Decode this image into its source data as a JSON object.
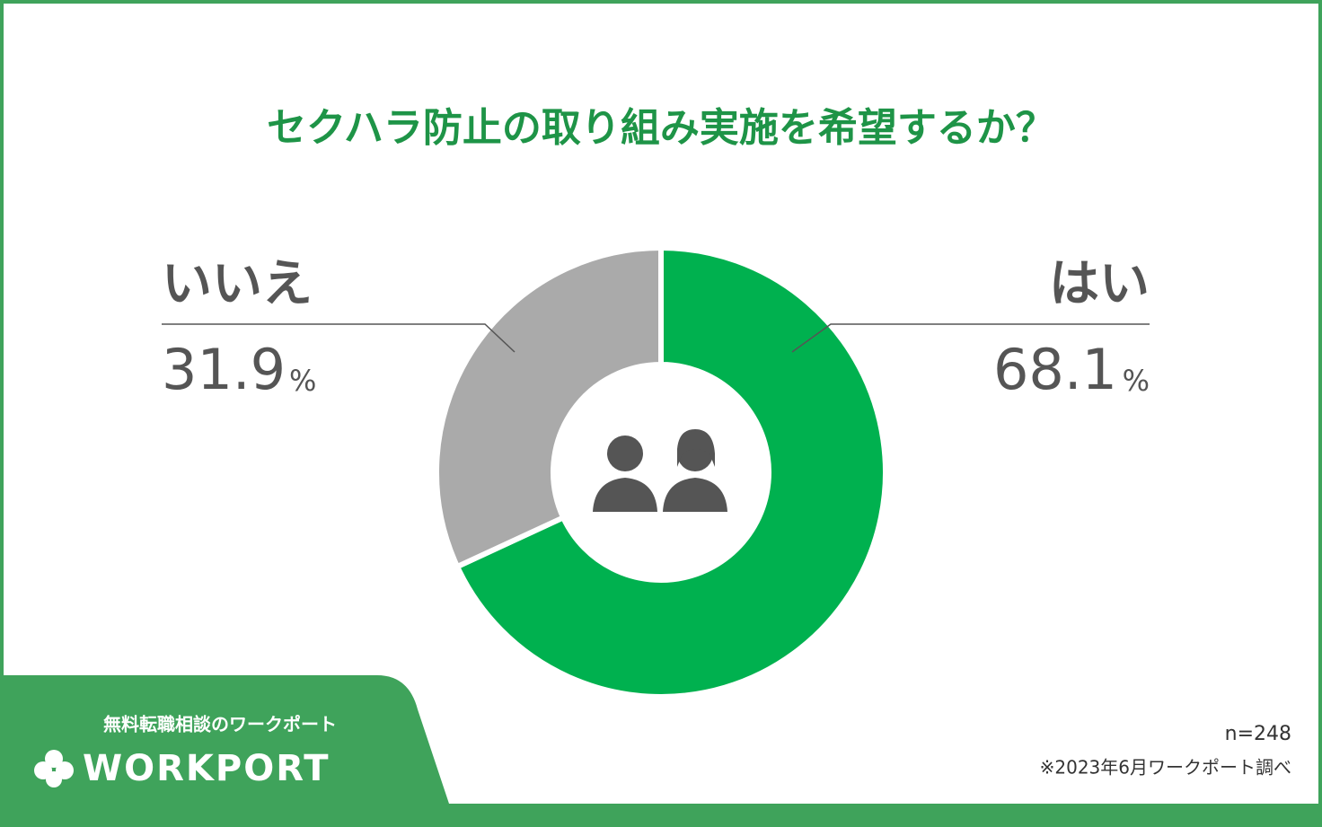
{
  "chart_data": {
    "type": "donut",
    "title": "セクハラ防止の取り組み実施を希望するか？",
    "categories": [
      "はい",
      "いいえ"
    ],
    "values": [
      68.1,
      31.9
    ],
    "unit": "%",
    "colors": [
      "#00b14f",
      "#aaaaaa"
    ],
    "note": "n=248",
    "source": "※2023年6月ワークポート調べ"
  },
  "branding": {
    "tagline": "無料転職相談のワークポート",
    "logo": "WORKPORT"
  }
}
